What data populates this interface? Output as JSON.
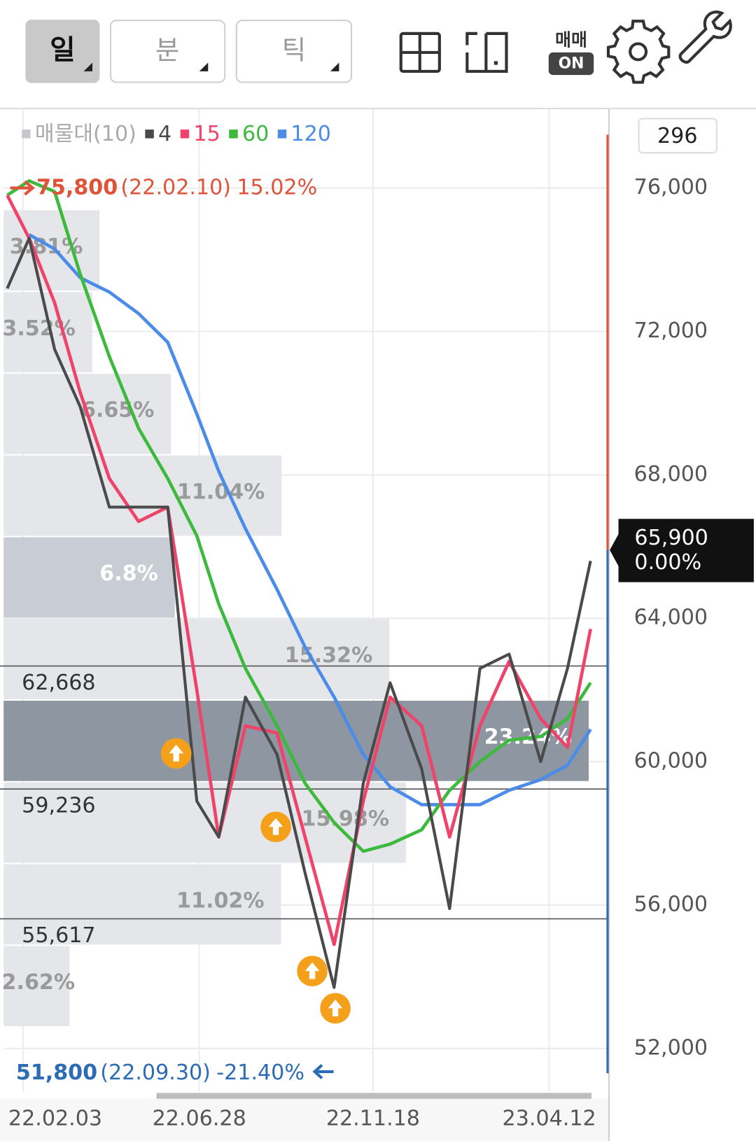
{
  "toolbar": {
    "periods": [
      "일",
      "분",
      "틱"
    ],
    "trade_toggle": {
      "label": "매매",
      "state": "ON"
    }
  },
  "chart_data": {
    "type": "line",
    "counter": "296",
    "grid": true,
    "volume_profile": {
      "name": "매물대(10)",
      "color": "#c4c8cd",
      "price_range": [
        52600,
        75400
      ],
      "values": [
        3.81,
        3.52,
        6.65,
        11.04,
        6.8,
        15.32,
        23.24,
        15.98,
        11.02,
        2.62
      ],
      "value_labels": [
        "3.81%",
        "3.52%",
        "6.65%",
        "11.04%",
        "6.8%",
        "15.32%",
        "23.24%",
        "15.98%",
        "11.02%",
        "2.62%"
      ],
      "bar_colors": [
        "#e4e6e9",
        "#e4e6e9",
        "#e4e6e9",
        "#e4e6e9",
        "#c8cdd5",
        "#e4e6e9",
        "#8e97a1",
        "#e4e6e9",
        "#e4e6e9",
        "#e4e6e9"
      ],
      "label_colors": [
        "#9a9a9a",
        "#9a9a9a",
        "#9a9a9a",
        "#9a9a9a",
        "#ffffff",
        "#9a9a9a",
        "#ffffff",
        "#9a9a9a",
        "#9a9a9a",
        "#9a9a9a"
      ]
    },
    "x": [
      "22.01.21",
      "22.02.08",
      "22.03.01",
      "22.03.22",
      "22.04.15",
      "22.05.09",
      "22.06.02",
      "22.06.26",
      "22.07.14",
      "22.08.05",
      "22.08.31",
      "22.09.23",
      "22.10.17",
      "22.11.10",
      "22.12.02",
      "22.12.28",
      "23.01.20",
      "23.02.14",
      "23.03.10",
      "23.04.05",
      "23.04.27",
      "23.05.16"
    ],
    "xlim": [
      "22.01.18",
      "23.05.30"
    ],
    "xticks": [
      "22.02.03",
      "22.06.28",
      "22.11.18",
      "23.04.12"
    ],
    "ylim": [
      50800,
      78200
    ],
    "yticks": [
      {
        "value": 52000,
        "label": "52,000"
      },
      {
        "value": 56000,
        "label": "56,000"
      },
      {
        "value": 60000,
        "label": "60,000"
      },
      {
        "value": 64000,
        "label": "64,000"
      },
      {
        "value": 68000,
        "label": "68,000"
      },
      {
        "value": 72000,
        "label": "72,000"
      },
      {
        "value": 76000,
        "label": "76,000"
      }
    ],
    "series": [
      {
        "name": "4",
        "color": "#4a4a4a",
        "values": [
          73200,
          74600,
          71500,
          69900,
          67100,
          67100,
          67100,
          58900,
          57900,
          61800,
          60200,
          56900,
          53700,
          59400,
          62200,
          59800,
          55900,
          62600,
          63000,
          60000,
          62600,
          65600
        ]
      },
      {
        "name": "15",
        "color": "#f0436a",
        "values": [
          75800,
          74600,
          72800,
          70300,
          67900,
          66700,
          67100,
          62000,
          57900,
          61000,
          60800,
          57900,
          54900,
          58900,
          61800,
          61000,
          57900,
          61000,
          62800,
          61200,
          60400,
          63700
        ]
      },
      {
        "name": "60",
        "color": "#3dba3d",
        "values": [
          75800,
          76200,
          75900,
          73600,
          71300,
          69300,
          67900,
          66300,
          64400,
          62600,
          61000,
          59400,
          58300,
          57500,
          57700,
          58100,
          59200,
          60000,
          60600,
          60700,
          61200,
          62200
        ]
      },
      {
        "name": "120",
        "color": "#4a8ce8",
        "values": [
          null,
          74700,
          74300,
          73500,
          73100,
          72500,
          71700,
          69700,
          68100,
          66500,
          64800,
          63200,
          61800,
          60200,
          59300,
          58800,
          58800,
          58800,
          59200,
          59500,
          59900,
          60900
        ]
      }
    ],
    "levels": {
      "values": [
        62668,
        59236,
        55617
      ],
      "value_labels": [
        "62,668",
        "59,236",
        "55,617"
      ]
    },
    "current": {
      "value": 65900,
      "label": "65,900",
      "change": "0.00%"
    },
    "high": {
      "value": 75800,
      "label": "75,800",
      "date": "(22.02.10)",
      "change": "15.02%",
      "color": "#e0533b"
    },
    "low": {
      "value": 51800,
      "label": "51,800",
      "date": "(22.09.30)",
      "change": "-21.40%",
      "color": "#2d6bb5"
    },
    "signals": {
      "x": [
        "22.06.09",
        "22.08.30",
        "22.09.29",
        "22.10.18"
      ],
      "values": [
        60230,
        58180,
        54160,
        53120
      ],
      "color": "#f5a01a"
    }
  }
}
